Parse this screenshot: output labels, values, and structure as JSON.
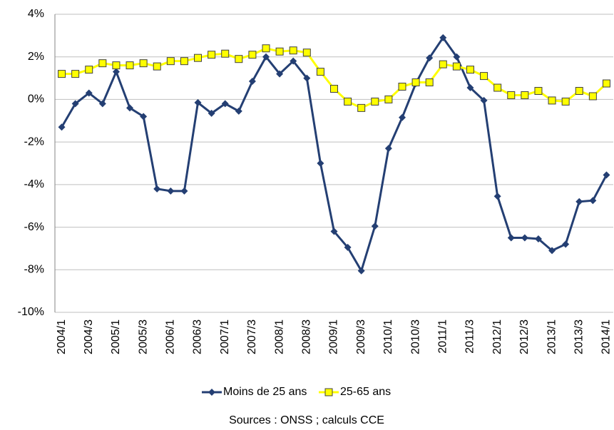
{
  "chart_data": {
    "type": "line",
    "categories": [
      "2004/1",
      null,
      "2004/3",
      null,
      "2005/1",
      null,
      "2005/3",
      null,
      "2006/1",
      null,
      "2006/3",
      null,
      "2007/1",
      null,
      "2007/3",
      null,
      "2008/1",
      null,
      "2008/3",
      null,
      "2009/1",
      null,
      "2009/3",
      null,
      "2010/1",
      null,
      "2010/3",
      null,
      "2011/1",
      null,
      "2011/3",
      null,
      "2012/1",
      null,
      "2012/3",
      null,
      "2013/1",
      null,
      "2013/3",
      null,
      "2014/1"
    ],
    "series": [
      {
        "name": "Moins de 25 ans",
        "color": "#243f73",
        "marker": "diamond",
        "values": [
          -1.3,
          -0.2,
          0.3,
          -0.2,
          1.3,
          -0.4,
          -0.8,
          -4.2,
          -4.3,
          -4.3,
          -0.15,
          -0.65,
          -0.2,
          -0.55,
          0.85,
          2.0,
          1.2,
          1.8,
          1.0,
          -3.0,
          -6.2,
          -6.95,
          -8.05,
          -5.95,
          -2.3,
          -0.85,
          0.75,
          1.95,
          2.9,
          2.0,
          0.55,
          -0.05,
          -4.55,
          -6.5,
          -6.5,
          -6.55,
          -7.1,
          -6.8,
          -4.8,
          -4.75,
          -3.55
        ]
      },
      {
        "name": "25-65 ans",
        "color": "#ffff00",
        "marker": "square",
        "values": [
          1.2,
          1.2,
          1.4,
          1.7,
          1.6,
          1.6,
          1.7,
          1.55,
          1.8,
          1.8,
          1.95,
          2.1,
          2.15,
          1.9,
          2.1,
          2.4,
          2.25,
          2.3,
          2.2,
          1.3,
          0.5,
          -0.1,
          -0.4,
          -0.1,
          0.0,
          0.6,
          0.8,
          0.8,
          1.65,
          1.55,
          1.4,
          1.1,
          0.55,
          0.2,
          0.2,
          0.4,
          -0.05,
          -0.1,
          0.4,
          0.15,
          0.75
        ]
      }
    ],
    "ylim": [
      -10,
      4
    ],
    "yticks": [
      {
        "value": -10,
        "label": "-10%"
      },
      {
        "value": -8,
        "label": "-8%"
      },
      {
        "value": -6,
        "label": "-6%"
      },
      {
        "value": -4,
        "label": "-4%"
      },
      {
        "value": -2,
        "label": "-2%"
      },
      {
        "value": 0,
        "label": "0%"
      },
      {
        "value": 2,
        "label": "2%"
      },
      {
        "value": 4,
        "label": "4%"
      }
    ],
    "grid": true,
    "legend": "bottom",
    "source": "Sources : ONSS ; calculs CCE"
  }
}
